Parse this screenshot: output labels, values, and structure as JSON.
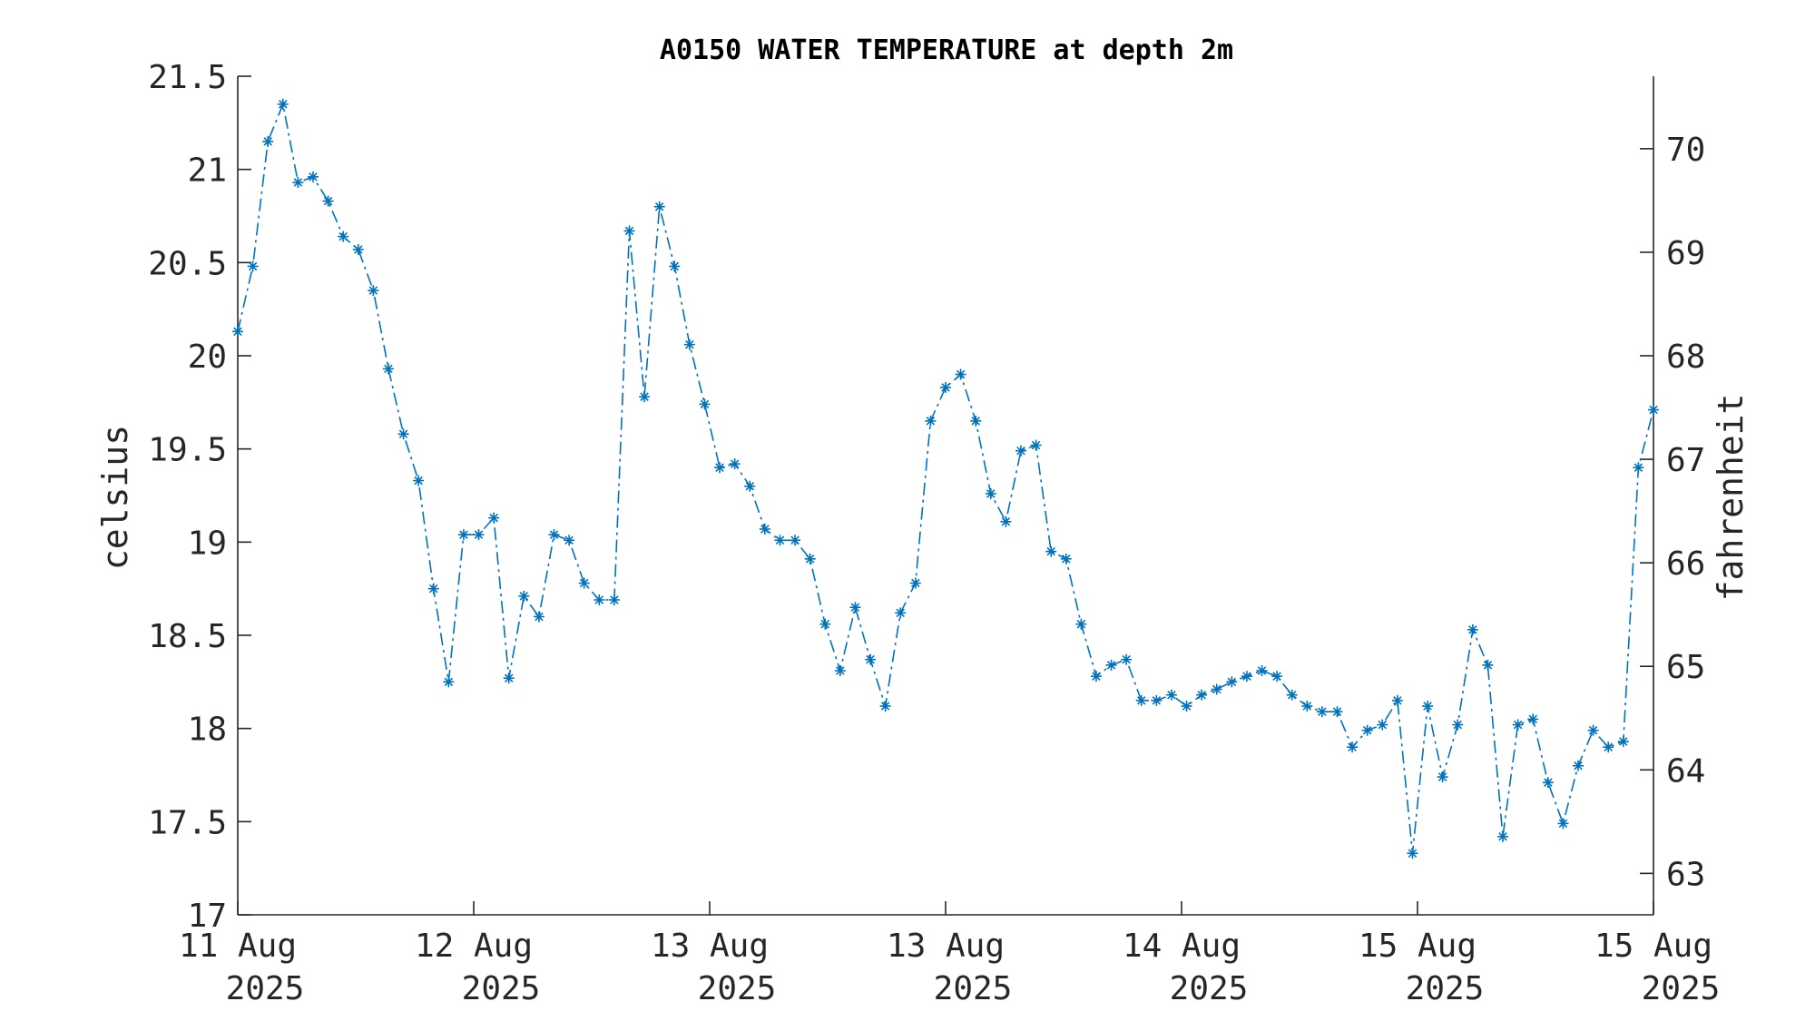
{
  "chart_data": {
    "type": "line",
    "title": "A0150 WATER TEMPERATURE at depth 2m",
    "ylabel": "celsius",
    "ylabel_right": "fahrenheit",
    "ylim": [
      17,
      21.5
    ],
    "ylim_right": [
      62.6,
      70.7
    ],
    "yticks": [
      "17",
      "17.5",
      "18",
      "18.5",
      "19",
      "19.5",
      "20",
      "20.5",
      "21",
      "21.5"
    ],
    "yticks_right": [
      "63",
      "64",
      "65",
      "66",
      "67",
      "68",
      "69",
      "70"
    ],
    "xlim": [
      0,
      6
    ],
    "xticks": [
      {
        "day": "11 Aug",
        "year": "2025"
      },
      {
        "day": "12 Aug",
        "year": "2025"
      },
      {
        "day": "13 Aug",
        "year": "2025"
      },
      {
        "day": "13 Aug",
        "year": "2025"
      },
      {
        "day": "14 Aug",
        "year": "2025"
      },
      {
        "day": "15 Aug",
        "year": "2025"
      },
      {
        "day": "15 Aug",
        "year": "2025"
      }
    ],
    "grid": false,
    "line_color": "#0072bd",
    "marker": "asterisk",
    "line_style": "dash-dot",
    "series": [
      {
        "values": [
          20.13,
          20.48,
          21.15,
          21.35,
          20.93,
          20.96,
          20.83,
          20.64,
          20.57,
          20.35,
          19.93,
          19.58,
          19.33,
          18.75,
          18.25,
          19.04,
          19.04,
          19.13,
          18.27,
          18.71,
          18.6,
          19.04,
          19.01,
          18.78,
          18.69,
          18.69,
          20.67,
          19.78,
          20.8,
          20.48,
          20.06,
          19.74,
          19.4,
          19.42,
          19.3,
          19.07,
          19.01,
          19.01,
          18.91,
          18.56,
          18.31,
          18.65,
          18.37,
          18.12,
          18.62,
          18.78,
          19.65,
          19.83,
          19.9,
          19.65,
          19.26,
          19.11,
          19.49,
          19.52,
          18.95,
          18.91,
          18.56,
          18.28,
          18.34,
          18.37,
          18.15,
          18.15,
          18.18,
          18.12,
          18.18,
          18.21,
          18.25,
          18.28,
          18.31,
          18.28,
          18.18,
          18.12,
          18.09,
          18.09,
          17.9,
          17.99,
          18.02,
          18.15,
          17.33,
          18.12,
          17.74,
          18.02,
          18.53,
          18.34,
          17.42,
          18.02,
          18.05,
          17.71,
          17.49,
          17.8,
          17.99,
          17.9,
          17.93,
          19.4,
          19.71
        ]
      }
    ]
  }
}
